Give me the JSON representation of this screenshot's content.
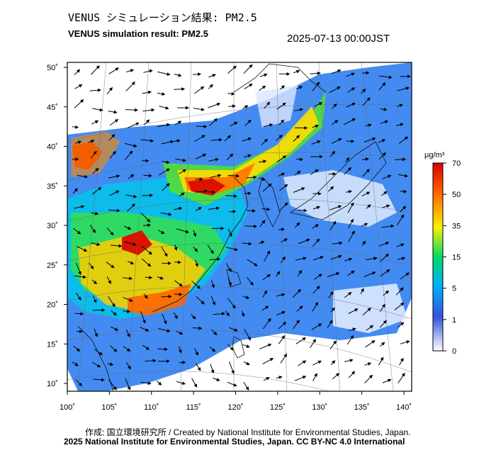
{
  "header": {
    "title_ja": "VENUS シミュレーション結果: PM2.5",
    "title_en": "VENUS simulation result: PM2.5",
    "timestamp": "2025-07-13 00:00JST"
  },
  "footer": {
    "credit": "作成: 国立環境研究所 / Created by National Institute for Environmental Studies, Japan.",
    "license": "2025 National Institute for Environmental Studies, Japan. CC BY-NC 4.0 International"
  },
  "map": {
    "lon_range": [
      100,
      141
    ],
    "lat_range": [
      9,
      51
    ],
    "lon_ticks": [
      "100˚",
      "105˚",
      "110˚",
      "115˚",
      "120˚",
      "125˚",
      "130˚",
      "135˚",
      "140˚"
    ],
    "lat_ticks": [
      "50˚",
      "45˚",
      "40˚",
      "35˚",
      "30˚",
      "25˚",
      "20˚",
      "15˚",
      "10˚"
    ],
    "grid": true
  },
  "colorbar": {
    "unit": "μg/m³",
    "ticks": [
      "70",
      "50",
      "35",
      "15",
      "5",
      "1",
      "0"
    ],
    "colors": [
      "#ffffff",
      "#3355dd",
      "#00aaff",
      "#00dd66",
      "#ffee00",
      "#ff6600",
      "#dd0000"
    ]
  }
}
